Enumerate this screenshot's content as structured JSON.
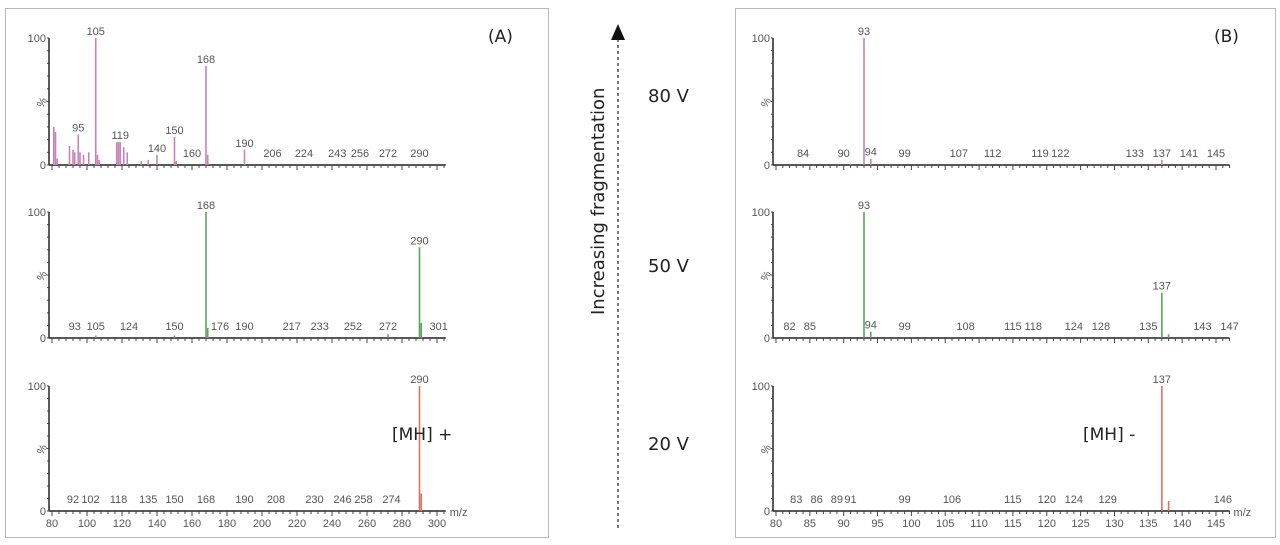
{
  "annotations": {
    "panel_a_label": "(A)",
    "panel_b_label": "(B)",
    "mh_plus": "[MH] +",
    "mh_minus": "[MH] -",
    "arrow_label": "Increasing fragmentation",
    "voltages": [
      "80 V",
      "50 V",
      "20 V"
    ]
  },
  "chart_data": [
    {
      "type": "bar",
      "panel": "A",
      "voltage": "80 V",
      "color": "#c583b8",
      "xlim": [
        80,
        305
      ],
      "ylim": [
        0,
        100
      ],
      "yticks": [
        "100",
        "%",
        "0"
      ],
      "show_xticks": false,
      "peaks": [
        [
          81,
          30
        ],
        [
          82,
          26
        ],
        [
          83,
          5
        ],
        [
          90,
          15
        ],
        [
          92,
          12
        ],
        [
          93,
          10
        ],
        [
          95,
          24
        ],
        [
          96,
          10
        ],
        [
          98,
          8
        ],
        [
          101,
          10
        ],
        [
          105,
          100
        ],
        [
          106,
          8
        ],
        [
          107,
          4
        ],
        [
          117,
          18
        ],
        [
          118,
          18
        ],
        [
          119,
          18
        ],
        [
          121,
          14
        ],
        [
          123,
          10
        ],
        [
          131,
          3
        ],
        [
          135,
          4
        ],
        [
          140,
          8
        ],
        [
          150,
          22
        ],
        [
          151,
          3
        ],
        [
          168,
          78
        ],
        [
          169,
          8
        ],
        [
          190,
          12
        ]
      ],
      "peak_labels": [
        95,
        105,
        119,
        140,
        150,
        160,
        168,
        190,
        206,
        224,
        243,
        256,
        272,
        290
      ]
    },
    {
      "type": "bar",
      "panel": "A",
      "voltage": "50 V",
      "color": "#5aa35a",
      "xlim": [
        80,
        305
      ],
      "ylim": [
        0,
        100
      ],
      "yticks": [
        "100",
        "%",
        "0"
      ],
      "show_xticks": false,
      "peaks": [
        [
          105,
          2
        ],
        [
          150,
          2
        ],
        [
          168,
          100
        ],
        [
          169,
          8
        ],
        [
          272,
          3
        ],
        [
          290,
          72
        ],
        [
          291,
          12
        ]
      ],
      "peak_labels": [
        93,
        105,
        124,
        150,
        168,
        176,
        190,
        217,
        233,
        252,
        272,
        290,
        301
      ]
    },
    {
      "type": "bar",
      "panel": "A",
      "voltage": "20 V",
      "color": "#e07060",
      "xlim": [
        80,
        305
      ],
      "ylim": [
        0,
        100
      ],
      "yticks": [
        "100",
        "%",
        "0"
      ],
      "show_xticks": true,
      "xticks": [
        80,
        100,
        120,
        140,
        160,
        180,
        200,
        220,
        240,
        260,
        280,
        300
      ],
      "xlabel": "m/z",
      "peaks": [
        [
          290,
          100
        ],
        [
          291,
          14
        ]
      ],
      "peak_labels": [
        92,
        102,
        118,
        135,
        150,
        168,
        190,
        208,
        230,
        246,
        258,
        274,
        290
      ]
    },
    {
      "type": "bar",
      "panel": "B",
      "voltage": "80 V",
      "color": "#c583b8",
      "xlim": [
        80,
        147
      ],
      "ylim": [
        0,
        100
      ],
      "yticks": [
        "100",
        "%",
        "0"
      ],
      "show_xticks": false,
      "peaks": [
        [
          91,
          1
        ],
        [
          93,
          100
        ],
        [
          94,
          5
        ],
        [
          137,
          4
        ]
      ],
      "peak_labels": [
        84,
        90,
        93,
        94,
        99,
        107,
        112,
        119,
        122,
        133,
        137,
        141,
        145
      ]
    },
    {
      "type": "bar",
      "panel": "B",
      "voltage": "50 V",
      "color": "#5aa35a",
      "xlim": [
        80,
        147
      ],
      "ylim": [
        0,
        100
      ],
      "yticks": [
        "100",
        "%",
        "0"
      ],
      "show_xticks": false,
      "peaks": [
        [
          93,
          100
        ],
        [
          94,
          5
        ],
        [
          137,
          36
        ],
        [
          138,
          3
        ]
      ],
      "peak_labels": [
        82,
        85,
        93,
        94,
        99,
        108,
        115,
        118,
        124,
        128,
        135,
        137,
        143,
        147
      ]
    },
    {
      "type": "bar",
      "panel": "B",
      "voltage": "20 V",
      "color": "#e07060",
      "xlim": [
        80,
        147
      ],
      "ylim": [
        0,
        100
      ],
      "yticks": [
        "100",
        "%",
        "0"
      ],
      "show_xticks": true,
      "xticks": [
        80,
        85,
        90,
        95,
        100,
        105,
        110,
        115,
        120,
        125,
        130,
        135,
        140,
        145
      ],
      "xlabel": "m/z",
      "peaks": [
        [
          137,
          100
        ],
        [
          138,
          8
        ]
      ],
      "peak_labels": [
        83,
        86,
        89,
        91,
        99,
        106,
        115,
        120,
        124,
        129,
        137,
        146
      ]
    }
  ]
}
